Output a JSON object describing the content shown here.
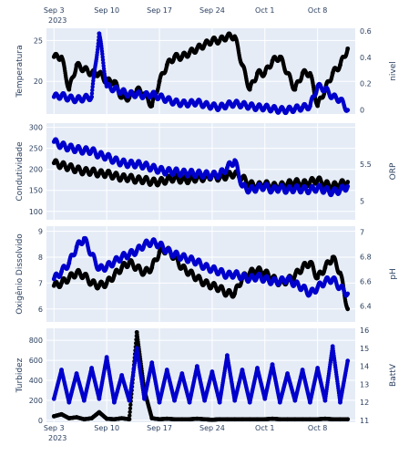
{
  "colors": {
    "plot_bg": "#e5ecf6",
    "grid": "#ffffff",
    "primary_series": "#000000",
    "secondary_series": "#0000cc",
    "text": "#2a3f5f"
  },
  "x_axis": {
    "range": [
      "2023-09-02",
      "2023-10-13"
    ],
    "ticks": [
      {
        "date": "2023-09-03",
        "label": "Sep 3"
      },
      {
        "date": "2023-09-10",
        "label": "Sep 10"
      },
      {
        "date": "2023-09-17",
        "label": "Sep 17"
      },
      {
        "date": "2023-09-24",
        "label": "Sep 24"
      },
      {
        "date": "2023-10-01",
        "label": "Oct 1"
      },
      {
        "date": "2023-10-08",
        "label": "Oct 8"
      }
    ],
    "year_label": "2023"
  },
  "chart_data": [
    {
      "type": "scatter",
      "xlabel": "",
      "left_axis": {
        "label": "Temperatura",
        "range": [
          16,
          26.5
        ],
        "ticks": [
          20,
          25
        ]
      },
      "right_axis": {
        "label": "nivel",
        "range": [
          -0.03,
          0.62
        ],
        "ticks": [
          0,
          0.2,
          0.4,
          0.6
        ]
      },
      "series": [
        {
          "axis": "left",
          "color": "primary_series",
          "x": [
            "2023-09-03",
            "2023-09-04",
            "2023-09-05",
            "2023-09-06",
            "2023-09-07",
            "2023-09-08",
            "2023-09-09",
            "2023-09-10",
            "2023-09-11",
            "2023-09-12",
            "2023-09-13",
            "2023-09-14",
            "2023-09-15",
            "2023-09-16",
            "2023-09-17",
            "2023-09-18",
            "2023-09-19",
            "2023-09-20",
            "2023-09-21",
            "2023-09-22",
            "2023-09-23",
            "2023-09-24",
            "2023-09-25",
            "2023-09-26",
            "2023-09-27",
            "2023-09-28",
            "2023-09-29",
            "2023-09-30",
            "2023-10-01",
            "2023-10-02",
            "2023-10-03",
            "2023-10-04",
            "2023-10-05",
            "2023-10-06",
            "2023-10-07",
            "2023-10-08",
            "2023-10-09",
            "2023-10-10",
            "2023-10-11",
            "2023-10-12"
          ],
          "values": [
            23,
            23,
            19,
            22,
            21.5,
            21,
            21,
            20,
            20,
            18,
            18,
            19,
            18.5,
            17,
            20,
            22,
            23,
            23,
            23.5,
            24,
            24.5,
            25,
            25,
            25.5,
            25.5,
            22,
            19,
            21,
            21,
            22.5,
            23,
            21,
            19,
            21,
            21,
            17,
            19,
            21,
            22,
            24
          ]
        },
        {
          "axis": "right",
          "color": "secondary_series",
          "x": [
            "2023-09-03",
            "2023-09-04",
            "2023-09-05",
            "2023-09-06",
            "2023-09-07",
            "2023-09-08",
            "2023-09-09",
            "2023-09-10",
            "2023-09-11",
            "2023-09-12",
            "2023-09-13",
            "2023-09-14",
            "2023-09-15",
            "2023-09-16",
            "2023-09-17",
            "2023-09-18",
            "2023-09-19",
            "2023-09-20",
            "2023-09-21",
            "2023-09-22",
            "2023-09-23",
            "2023-09-24",
            "2023-09-25",
            "2023-09-26",
            "2023-09-27",
            "2023-09-28",
            "2023-09-29",
            "2023-09-30",
            "2023-10-01",
            "2023-10-02",
            "2023-10-03",
            "2023-10-04",
            "2023-10-05",
            "2023-10-06",
            "2023-10-07",
            "2023-10-08",
            "2023-10-09",
            "2023-10-10",
            "2023-10-11",
            "2023-10-12"
          ],
          "values": [
            0.1,
            0.11,
            0.09,
            0.08,
            0.09,
            0.1,
            0.58,
            0.18,
            0.16,
            0.14,
            0.12,
            0.12,
            0.11,
            0.12,
            0.1,
            0.08,
            0.06,
            0.05,
            0.05,
            0.06,
            0.04,
            0.03,
            0.02,
            0.04,
            0.05,
            0.04,
            0.03,
            0.02,
            0.02,
            0.01,
            0.0,
            0.0,
            0.01,
            0.02,
            0.03,
            0.18,
            0.16,
            0.1,
            0.08,
            0.0
          ]
        }
      ]
    },
    {
      "type": "scatter",
      "left_axis": {
        "label": "Condutividade",
        "range": [
          80,
          310
        ],
        "ticks": [
          100,
          150,
          200,
          250,
          300
        ]
      },
      "right_axis": {
        "label": "ORP",
        "range": [
          4.75,
          6.05
        ],
        "ticks": [
          5,
          5.5
        ]
      },
      "series": [
        {
          "axis": "left",
          "color": "primary_series",
          "x": [
            "2023-09-03",
            "2023-09-04",
            "2023-09-05",
            "2023-09-06",
            "2023-09-07",
            "2023-09-08",
            "2023-09-09",
            "2023-09-10",
            "2023-09-11",
            "2023-09-12",
            "2023-09-13",
            "2023-09-14",
            "2023-09-15",
            "2023-09-16",
            "2023-09-17",
            "2023-09-18",
            "2023-09-19",
            "2023-09-20",
            "2023-09-21",
            "2023-09-22",
            "2023-09-23",
            "2023-09-24",
            "2023-09-25",
            "2023-09-26",
            "2023-09-27",
            "2023-09-28",
            "2023-09-29",
            "2023-09-30",
            "2023-10-01",
            "2023-10-02",
            "2023-10-03",
            "2023-10-04",
            "2023-10-05",
            "2023-10-06",
            "2023-10-07",
            "2023-10-08",
            "2023-10-09",
            "2023-10-10",
            "2023-10-11",
            "2023-10-12"
          ],
          "values": [
            215,
            210,
            205,
            200,
            195,
            195,
            190,
            190,
            185,
            180,
            180,
            175,
            175,
            170,
            170,
            175,
            180,
            175,
            175,
            180,
            180,
            185,
            180,
            185,
            190,
            180,
            165,
            160,
            165,
            160,
            160,
            165,
            170,
            165,
            170,
            175,
            165,
            160,
            165,
            170
          ]
        },
        {
          "axis": "right",
          "color": "secondary_series",
          "x": [
            "2023-09-03",
            "2023-09-04",
            "2023-09-05",
            "2023-09-06",
            "2023-09-07",
            "2023-09-08",
            "2023-09-09",
            "2023-09-10",
            "2023-09-11",
            "2023-09-12",
            "2023-09-13",
            "2023-09-14",
            "2023-09-15",
            "2023-09-16",
            "2023-09-17",
            "2023-09-18",
            "2023-09-19",
            "2023-09-20",
            "2023-09-21",
            "2023-09-22",
            "2023-09-23",
            "2023-09-24",
            "2023-09-25",
            "2023-09-26",
            "2023-09-27",
            "2023-09-28",
            "2023-09-29",
            "2023-09-30",
            "2023-10-01",
            "2023-10-02",
            "2023-10-03",
            "2023-10-04",
            "2023-10-05",
            "2023-10-06",
            "2023-10-07",
            "2023-10-08",
            "2023-10-09",
            "2023-10-10",
            "2023-10-11",
            "2023-10-12"
          ],
          "values": [
            5.8,
            5.75,
            5.72,
            5.7,
            5.68,
            5.68,
            5.62,
            5.6,
            5.55,
            5.52,
            5.5,
            5.5,
            5.48,
            5.45,
            5.42,
            5.4,
            5.4,
            5.38,
            5.38,
            5.37,
            5.36,
            5.35,
            5.36,
            5.45,
            5.55,
            5.2,
            5.15,
            5.18,
            5.2,
            5.15,
            5.18,
            5.15,
            5.17,
            5.16,
            5.15,
            5.18,
            5.15,
            5.12,
            5.15,
            5.2
          ]
        }
      ]
    },
    {
      "type": "scatter",
      "left_axis": {
        "label": "Oxigênio Dissolvido",
        "range": [
          5.5,
          9.2
        ],
        "ticks": [
          6,
          7,
          8,
          9
        ]
      },
      "right_axis": {
        "label": "pH",
        "range": [
          6.27,
          7.05
        ],
        "ticks": [
          6.4,
          6.6,
          6.8,
          7
        ]
      },
      "series": [
        {
          "axis": "left",
          "color": "primary_series",
          "x": [
            "2023-09-03",
            "2023-09-04",
            "2023-09-05",
            "2023-09-06",
            "2023-09-07",
            "2023-09-08",
            "2023-09-09",
            "2023-09-10",
            "2023-09-11",
            "2023-09-12",
            "2023-09-13",
            "2023-09-14",
            "2023-09-15",
            "2023-09-16",
            "2023-09-17",
            "2023-09-18",
            "2023-09-19",
            "2023-09-20",
            "2023-09-21",
            "2023-09-22",
            "2023-09-23",
            "2023-09-24",
            "2023-09-25",
            "2023-09-26",
            "2023-09-27",
            "2023-09-28",
            "2023-09-29",
            "2023-09-30",
            "2023-10-01",
            "2023-10-02",
            "2023-10-03",
            "2023-10-04",
            "2023-10-05",
            "2023-10-06",
            "2023-10-07",
            "2023-10-08",
            "2023-10-09",
            "2023-10-10",
            "2023-10-11",
            "2023-10-12"
          ],
          "values": [
            6.9,
            7.0,
            7.2,
            7.4,
            7.3,
            7.0,
            6.9,
            7.0,
            7.3,
            7.6,
            7.8,
            7.6,
            7.4,
            7.6,
            8.2,
            8.3,
            8.0,
            7.6,
            7.4,
            7.2,
            7.0,
            6.9,
            6.8,
            6.6,
            6.6,
            7.2,
            7.4,
            7.5,
            7.4,
            7.2,
            7.0,
            7.1,
            7.3,
            7.6,
            7.8,
            7.2,
            7.6,
            8.0,
            7.4,
            6.0
          ]
        },
        {
          "axis": "right",
          "color": "secondary_series",
          "x": [
            "2023-09-03",
            "2023-09-04",
            "2023-09-05",
            "2023-09-06",
            "2023-09-07",
            "2023-09-08",
            "2023-09-09",
            "2023-09-10",
            "2023-09-11",
            "2023-09-12",
            "2023-09-13",
            "2023-09-14",
            "2023-09-15",
            "2023-09-16",
            "2023-09-17",
            "2023-09-18",
            "2023-09-19",
            "2023-09-20",
            "2023-09-21",
            "2023-09-22",
            "2023-09-23",
            "2023-09-24",
            "2023-09-25",
            "2023-09-26",
            "2023-09-27",
            "2023-09-28",
            "2023-09-29",
            "2023-09-30",
            "2023-10-01",
            "2023-10-02",
            "2023-10-03",
            "2023-10-04",
            "2023-10-05",
            "2023-10-06",
            "2023-10-07",
            "2023-10-08",
            "2023-10-09",
            "2023-10-10",
            "2023-10-11",
            "2023-10-12"
          ],
          "values": [
            6.62,
            6.68,
            6.75,
            6.88,
            6.95,
            6.82,
            6.7,
            6.72,
            6.76,
            6.8,
            6.82,
            6.85,
            6.9,
            6.92,
            6.9,
            6.85,
            6.82,
            6.8,
            6.78,
            6.76,
            6.72,
            6.7,
            6.68,
            6.65,
            6.66,
            6.64,
            6.62,
            6.64,
            6.62,
            6.6,
            6.6,
            6.62,
            6.58,
            6.55,
            6.5,
            6.55,
            6.6,
            6.62,
            6.55,
            6.5
          ]
        }
      ]
    },
    {
      "type": "scatter",
      "left_axis": {
        "label": "Turbidez",
        "range": [
          -20,
          920
        ],
        "ticks": [
          0,
          200,
          400,
          600,
          800
        ]
      },
      "right_axis": {
        "label": "BattV",
        "range": [
          10.9,
          16.1
        ],
        "ticks": [
          11,
          12,
          13,
          14,
          15,
          16
        ]
      },
      "series": [
        {
          "axis": "left",
          "color": "primary_series",
          "x": [
            "2023-09-03",
            "2023-09-04",
            "2023-09-05",
            "2023-09-06",
            "2023-09-07",
            "2023-09-08",
            "2023-09-09",
            "2023-09-10",
            "2023-09-11",
            "2023-09-12",
            "2023-09-13",
            "2023-09-14",
            "2023-09-15",
            "2023-09-16",
            "2023-09-17",
            "2023-09-18",
            "2023-09-19",
            "2023-09-20",
            "2023-09-21",
            "2023-09-22",
            "2023-09-23",
            "2023-09-24",
            "2023-09-25",
            "2023-09-26",
            "2023-09-27",
            "2023-09-28",
            "2023-09-29",
            "2023-09-30",
            "2023-10-01",
            "2023-10-02",
            "2023-10-03",
            "2023-10-04",
            "2023-10-05",
            "2023-10-06",
            "2023-10-07",
            "2023-10-08",
            "2023-10-09",
            "2023-10-10",
            "2023-10-11",
            "2023-10-12"
          ],
          "values": [
            40,
            60,
            20,
            30,
            10,
            20,
            80,
            15,
            10,
            20,
            10,
            880,
            300,
            20,
            10,
            15,
            10,
            10,
            10,
            15,
            10,
            5,
            10,
            10,
            10,
            10,
            10,
            10,
            10,
            15,
            10,
            10,
            10,
            10,
            10,
            10,
            15,
            10,
            10,
            10
          ]
        },
        {
          "axis": "right",
          "color": "secondary_series",
          "x": [
            "2023-09-03",
            "2023-09-04",
            "2023-09-05",
            "2023-09-06",
            "2023-09-07",
            "2023-09-08",
            "2023-09-09",
            "2023-09-10",
            "2023-09-11",
            "2023-09-12",
            "2023-09-13",
            "2023-09-14",
            "2023-09-15",
            "2023-09-16",
            "2023-09-17",
            "2023-09-18",
            "2023-09-19",
            "2023-09-20",
            "2023-09-21",
            "2023-09-22",
            "2023-09-23",
            "2023-09-24",
            "2023-09-25",
            "2023-09-26",
            "2023-09-27",
            "2023-09-28",
            "2023-09-29",
            "2023-09-30",
            "2023-10-01",
            "2023-10-02",
            "2023-10-03",
            "2023-10-04",
            "2023-10-05",
            "2023-10-06",
            "2023-10-07",
            "2023-10-08",
            "2023-10-09",
            "2023-10-10",
            "2023-10-11",
            "2023-10-12"
          ],
          "values": [
            12.2,
            13.8,
            12.0,
            13.6,
            12.1,
            13.9,
            12.2,
            14.5,
            12.0,
            13.5,
            12.1,
            15.0,
            12.2,
            14.2,
            12.0,
            13.8,
            12.1,
            13.6,
            12.0,
            14.0,
            12.1,
            13.7,
            12.0,
            14.6,
            12.1,
            13.8,
            12.0,
            13.9,
            12.2,
            14.1,
            12.0,
            13.6,
            12.1,
            13.8,
            12.0,
            13.9,
            12.1,
            15.1,
            12.0,
            14.3
          ]
        }
      ]
    }
  ]
}
